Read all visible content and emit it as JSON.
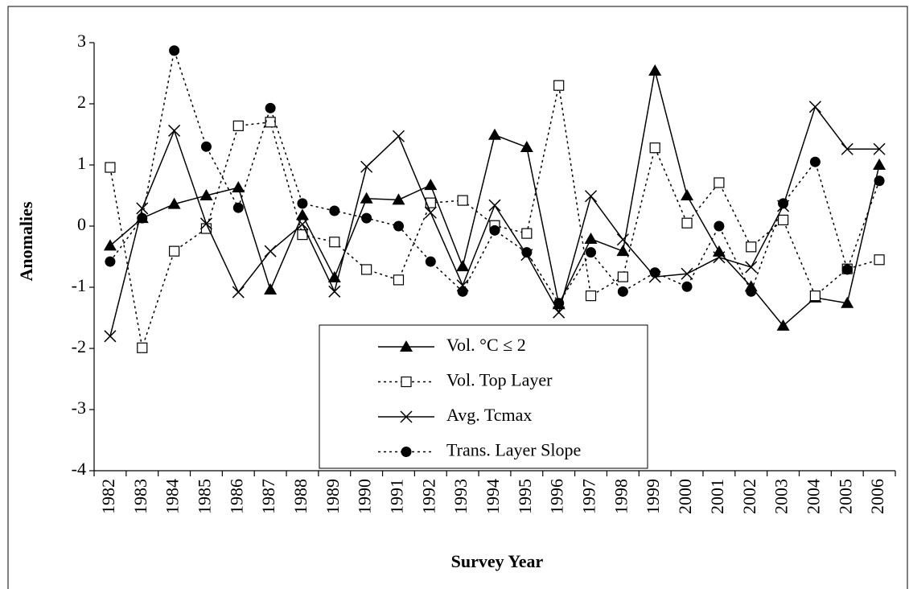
{
  "chart_data": {
    "type": "line",
    "x_label": "Survey Year",
    "y_label": "Anomalies",
    "categories": [
      "1982",
      "1983",
      "1984",
      "1985",
      "1986",
      "1987",
      "1988",
      "1989",
      "1990",
      "1991",
      "1992",
      "1993",
      "1994",
      "1995",
      "1996",
      "1997",
      "1998",
      "1999",
      "2000",
      "2001",
      "2002",
      "2003",
      "2004",
      "2005",
      "2006"
    ],
    "ylim": [
      -4,
      3
    ],
    "yticks": [
      -4,
      -3,
      -2,
      -1,
      0,
      1,
      2,
      3
    ],
    "grid": false,
    "legend": "bottom-center",
    "series": [
      {
        "name": "Vol. °C ≤ 2",
        "color": "#000000",
        "marker": "triangle",
        "dash": "solid",
        "values": [
          -0.32,
          0.13,
          0.36,
          0.5,
          0.63,
          -1.04,
          0.18,
          -0.84,
          0.45,
          0.43,
          0.67,
          -0.66,
          1.49,
          1.29,
          -1.28,
          -0.21,
          -0.41,
          2.54,
          0.5,
          -0.42,
          -0.99,
          -1.63,
          -1.17,
          -1.26,
          1.0
        ]
      },
      {
        "name": "Vol. Top Layer",
        "color": "#000000",
        "marker": "square",
        "dash": "dotted",
        "values": [
          0.96,
          -1.99,
          -0.41,
          -0.04,
          1.64,
          1.7,
          -0.14,
          -0.26,
          -0.71,
          -0.88,
          0.38,
          0.42,
          0.01,
          -0.12,
          2.3,
          -1.14,
          -0.83,
          1.28,
          0.05,
          0.71,
          -0.34,
          0.1,
          -1.14,
          -0.7,
          -0.55
        ]
      },
      {
        "name": "Avg. Tcmax",
        "color": "#000000",
        "marker": "x",
        "dash": "solid",
        "values": [
          -1.8,
          0.29,
          1.56,
          0.04,
          -1.08,
          -0.41,
          0.03,
          -1.07,
          0.97,
          1.47,
          0.22,
          -0.97,
          0.34,
          -0.47,
          -1.41,
          0.49,
          -0.22,
          -0.83,
          -0.78,
          -0.51,
          -0.67,
          0.33,
          1.95,
          1.26,
          1.26
        ]
      },
      {
        "name": "Trans. Layer Slope",
        "color": "#000000",
        "marker": "circle",
        "dash": "dotted",
        "values": [
          -0.58,
          0.13,
          2.87,
          1.3,
          0.3,
          1.93,
          0.37,
          0.25,
          0.13,
          0.0,
          -0.58,
          -1.07,
          -0.07,
          -0.43,
          -1.26,
          -0.43,
          -1.07,
          -0.76,
          -0.99,
          0.0,
          -1.07,
          0.37,
          1.05,
          -0.71,
          0.74
        ]
      }
    ]
  }
}
